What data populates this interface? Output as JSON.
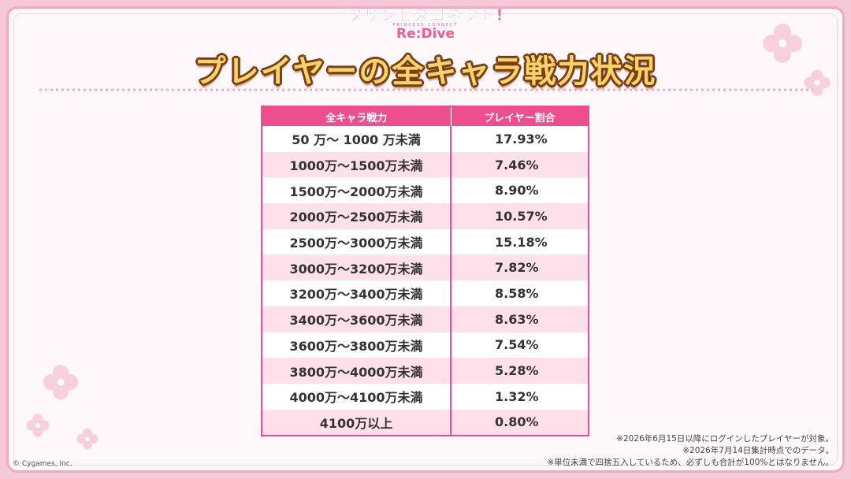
{
  "logo": {
    "main": "プリンセスコネクト!",
    "sub": "PRINCESS CONNECT",
    "redive": "Re:Dive"
  },
  "title": "プレイヤーの全キャラ戦力状況",
  "table": {
    "headers": [
      "全キャラ戦力",
      "プレイヤー割合"
    ],
    "rows": [
      {
        "range": "50 万～ 1000 万未満",
        "percent": "17.93%"
      },
      {
        "range": "1000万～1500万未満",
        "percent": "7.46%"
      },
      {
        "range": "1500万～2000万未満",
        "percent": "8.90%"
      },
      {
        "range": "2000万～2500万未満",
        "percent": "10.57%"
      },
      {
        "range": "2500万～3000万未満",
        "percent": "15.18%"
      },
      {
        "range": "3000万～3200万未満",
        "percent": "7.82%"
      },
      {
        "range": "3200万～3400万未満",
        "percent": "8.58%"
      },
      {
        "range": "3400万～3600万未満",
        "percent": "8.63%"
      },
      {
        "range": "3600万～3800万未満",
        "percent": "7.54%"
      },
      {
        "range": "3800万～4000万未満",
        "percent": "5.28%"
      },
      {
        "range": "4000万～4100万未満",
        "percent": "1.32%"
      },
      {
        "range": "4100万以上",
        "percent": "0.80%"
      }
    ]
  },
  "notes": [
    "※2026年6月15日以降にログインしたプレイヤーが対象。",
    "※2026年7月14日集計時点でのデータ。",
    "※単位未満で四捨五入しているため、必ずしも合計が100%とはなりません。"
  ],
  "copyright": "© Cygames, Inc.",
  "colors": {
    "accent": "#ee4e8e",
    "row_alt": "#fde0ea",
    "title_fill": "#f6d46a",
    "title_outline": "#7a3e12"
  }
}
